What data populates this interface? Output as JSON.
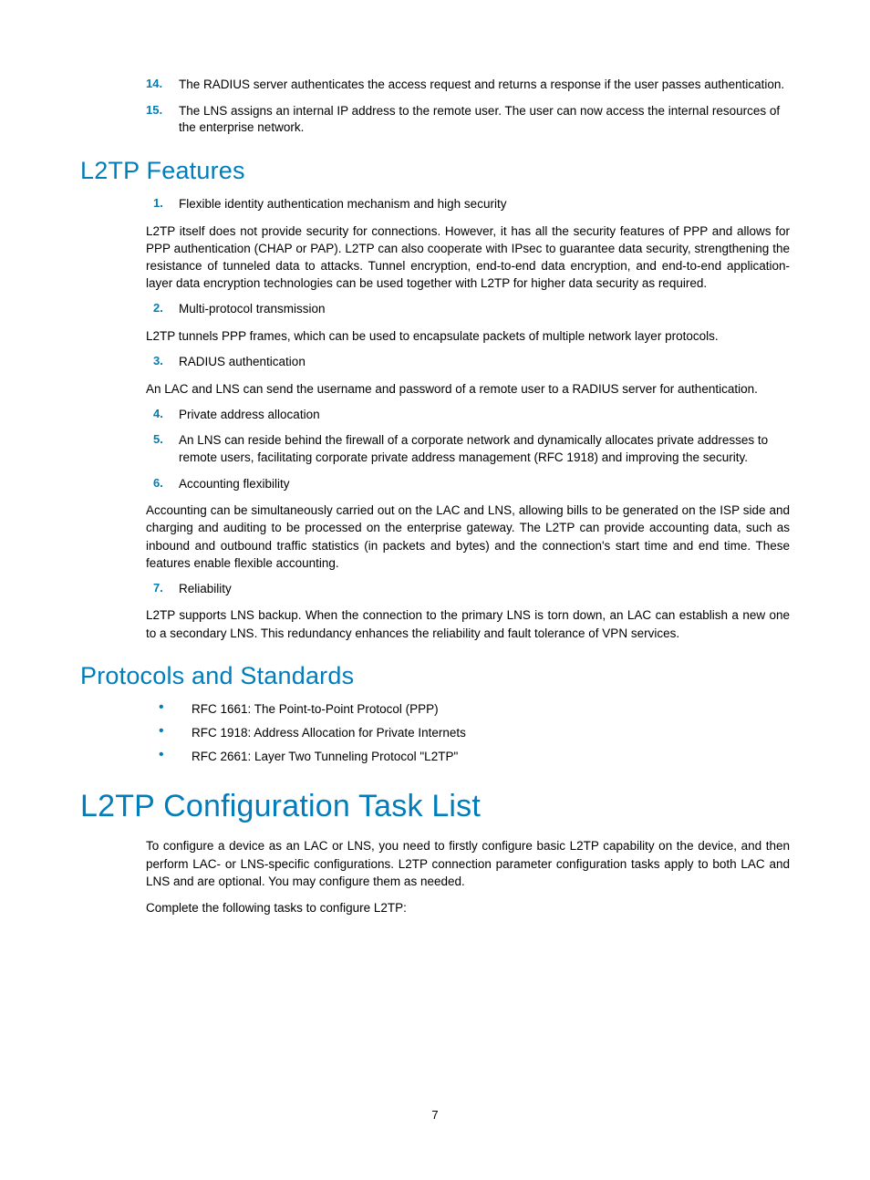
{
  "colors": {
    "accent": "#007dba",
    "text": "#000000",
    "background": "#ffffff"
  },
  "typography": {
    "h1_fontsize": 34,
    "h2_fontsize": 27,
    "body_fontsize": 13.5,
    "list_number_fontsize": 13,
    "list_number_weight": 600
  },
  "top_list": [
    {
      "num": "14.",
      "text": "The RADIUS server authenticates the access request and returns a response if the user passes authentication."
    },
    {
      "num": "15.",
      "text": "The LNS assigns an internal IP address to the remote user. The user can now access the internal resources of the enterprise network."
    }
  ],
  "features": {
    "heading": "L2TP Features",
    "items": [
      {
        "num": "1.",
        "text": "Flexible identity authentication mechanism and high security"
      },
      {
        "num": "2.",
        "text": "Multi-protocol transmission"
      },
      {
        "num": "3.",
        "text": "RADIUS authentication"
      },
      {
        "num": "4.",
        "text": "Private address allocation"
      },
      {
        "num": "5.",
        "text": "An LNS can reside behind the firewall of a corporate network and dynamically allocates private addresses to remote users, facilitating corporate private address management (RFC 1918) and improving the security."
      },
      {
        "num": "6.",
        "text": "Accounting flexibility"
      },
      {
        "num": "7.",
        "text": "Reliability"
      }
    ],
    "para_after_1": "L2TP itself does not provide security for connections. However, it has all the security features of PPP and allows for PPP authentication (CHAP or PAP). L2TP can also cooperate with IPsec to guarantee data security, strengthening the resistance of tunneled data to attacks. Tunnel encryption, end-to-end data encryption, and end-to-end application-layer data encryption technologies can be used together with L2TP for higher data security as required.",
    "para_after_2": "L2TP tunnels PPP frames, which can be used to encapsulate packets of multiple network layer protocols.",
    "para_after_3": "An LAC and LNS can send the username and password of a remote user to a RADIUS server for authentication.",
    "para_after_6": "Accounting can be simultaneously carried out on the LAC and LNS, allowing bills to be generated on the ISP side and charging and auditing to be processed on the enterprise gateway. The L2TP can provide accounting data, such as inbound and outbound traffic statistics (in packets and bytes) and the connection's start time and end time. These features enable flexible accounting.",
    "para_after_7": "L2TP supports LNS backup. When the connection to the primary LNS is torn down, an LAC can establish a new one to a secondary LNS. This redundancy enhances the reliability and fault tolerance of VPN services."
  },
  "protocols": {
    "heading": "Protocols and Standards",
    "bullets": [
      "RFC 1661: The Point-to-Point Protocol (PPP)",
      "RFC 1918: Address Allocation for Private Internets",
      "RFC 2661: Layer Two Tunneling Protocol \"L2TP\""
    ]
  },
  "tasklist": {
    "heading": "L2TP Configuration Task List",
    "para1": "To configure a device as an LAC or LNS, you need to firstly configure basic L2TP capability on the device, and then perform LAC- or LNS-specific configurations. L2TP connection parameter configuration tasks apply to both LAC and LNS and are optional. You may configure them as needed.",
    "para2": "Complete the following tasks to configure L2TP:"
  },
  "page_number": "7"
}
